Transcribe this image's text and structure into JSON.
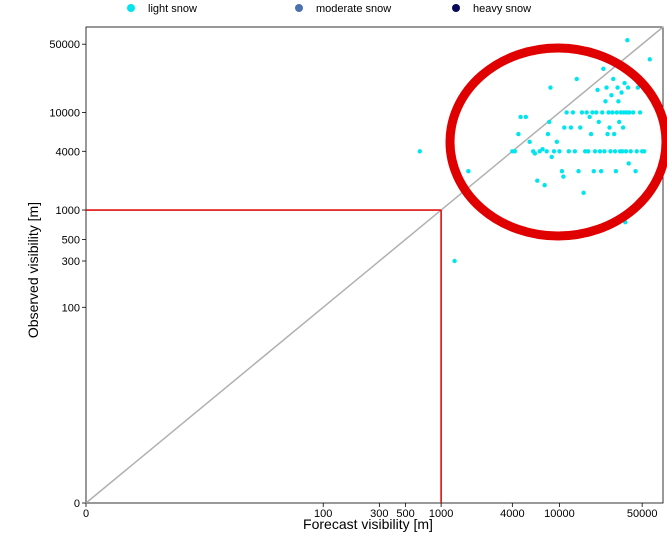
{
  "chart_data": {
    "type": "scatter",
    "title": "",
    "xlabel": "Forecast visibility [m]",
    "ylabel": "Observed visibility [m]",
    "x_scale": "log",
    "y_scale": "log",
    "xlim": [
      0,
      75000
    ],
    "ylim": [
      0,
      75000
    ],
    "x_ticks": [
      {
        "value": 0,
        "label": "0"
      },
      {
        "value": 100,
        "label": "100"
      },
      {
        "value": 300,
        "label": "300"
      },
      {
        "value": 500,
        "label": "500"
      },
      {
        "value": 1000,
        "label": "1000"
      },
      {
        "value": 4000,
        "label": "4000"
      },
      {
        "value": 10000,
        "label": "10000"
      },
      {
        "value": 50000,
        "label": "50000"
      }
    ],
    "y_ticks": [
      {
        "value": 0,
        "label": "0"
      },
      {
        "value": 100,
        "label": "100"
      },
      {
        "value": 300,
        "label": "300"
      },
      {
        "value": 500,
        "label": "500"
      },
      {
        "value": 1000,
        "label": "1000"
      },
      {
        "value": 4000,
        "label": "4000"
      },
      {
        "value": 10000,
        "label": "10000"
      },
      {
        "value": 50000,
        "label": "50000"
      }
    ],
    "legend": {
      "placement": "top",
      "entries": [
        {
          "label": "light snow",
          "color": "#00e5ee"
        },
        {
          "label": "moderate snow",
          "color": "#4a72b0"
        },
        {
          "label": "heavy snow",
          "color": "#0a0a5a"
        }
      ]
    },
    "reference_line": {
      "label": "",
      "color": "#b0b0b0",
      "from": [
        0,
        0
      ],
      "to": [
        75000,
        75000
      ]
    },
    "threshold_lines": {
      "color": "#e01010",
      "x": 1000,
      "y": 1000
    },
    "highlight_circle": {
      "color": "#e00000",
      "center": [
        15000,
        8000
      ]
    },
    "series": [
      {
        "name": "light snow",
        "color": "#00e5ee",
        "points": [
          [
            660,
            4000
          ],
          [
            1300,
            300
          ],
          [
            1700,
            2500
          ],
          [
            4000,
            4000
          ],
          [
            4200,
            4000
          ],
          [
            4500,
            6000
          ],
          [
            4700,
            9000
          ],
          [
            5200,
            9000
          ],
          [
            5600,
            5000
          ],
          [
            6000,
            4000
          ],
          [
            6200,
            3800
          ],
          [
            6500,
            2000
          ],
          [
            6800,
            4000
          ],
          [
            7200,
            4200
          ],
          [
            7500,
            1800
          ],
          [
            7800,
            4000
          ],
          [
            8000,
            6000
          ],
          [
            8200,
            8000
          ],
          [
            8400,
            18000
          ],
          [
            8600,
            3500
          ],
          [
            9000,
            4000
          ],
          [
            9500,
            5000
          ],
          [
            10000,
            4000
          ],
          [
            10500,
            2500
          ],
          [
            10800,
            2200
          ],
          [
            11000,
            7000
          ],
          [
            11500,
            10000
          ],
          [
            12000,
            4000
          ],
          [
            12500,
            7000
          ],
          [
            13000,
            10000
          ],
          [
            13500,
            4000
          ],
          [
            14000,
            22000
          ],
          [
            14500,
            2500
          ],
          [
            15000,
            7000
          ],
          [
            15500,
            10000
          ],
          [
            16000,
            1500
          ],
          [
            16500,
            4000
          ],
          [
            17000,
            10000
          ],
          [
            17500,
            4000
          ],
          [
            18000,
            9000
          ],
          [
            18500,
            6000
          ],
          [
            19000,
            10000
          ],
          [
            19500,
            2500
          ],
          [
            20000,
            4000
          ],
          [
            20500,
            10000
          ],
          [
            21000,
            17000
          ],
          [
            21500,
            8000
          ],
          [
            22000,
            4000
          ],
          [
            22500,
            2500
          ],
          [
            23000,
            10000
          ],
          [
            23500,
            28000
          ],
          [
            24000,
            4000
          ],
          [
            24500,
            13000
          ],
          [
            25000,
            18000
          ],
          [
            25500,
            6000
          ],
          [
            26000,
            10000
          ],
          [
            26500,
            7000
          ],
          [
            27000,
            4000
          ],
          [
            27500,
            15000
          ],
          [
            28000,
            10000
          ],
          [
            28500,
            22000
          ],
          [
            29000,
            6000
          ],
          [
            29500,
            4000
          ],
          [
            30000,
            2500
          ],
          [
            30500,
            10000
          ],
          [
            31000,
            18000
          ],
          [
            31500,
            13000
          ],
          [
            32000,
            8000
          ],
          [
            32500,
            4000
          ],
          [
            33000,
            10000
          ],
          [
            33500,
            16000
          ],
          [
            34000,
            4000
          ],
          [
            34500,
            7000
          ],
          [
            35000,
            10000
          ],
          [
            35500,
            20000
          ],
          [
            36000,
            750
          ],
          [
            36500,
            4000
          ],
          [
            37000,
            10000
          ],
          [
            37500,
            55000
          ],
          [
            38000,
            18000
          ],
          [
            38500,
            3000
          ],
          [
            39000,
            10000
          ],
          [
            40000,
            4000
          ],
          [
            42000,
            10000
          ],
          [
            44000,
            2500
          ],
          [
            45000,
            4000
          ],
          [
            46000,
            18000
          ],
          [
            48000,
            10000
          ],
          [
            50000,
            4000
          ],
          [
            52000,
            4000
          ],
          [
            58000,
            35000
          ]
        ]
      },
      {
        "name": "moderate snow",
        "color": "#4a72b0",
        "points": []
      },
      {
        "name": "heavy snow",
        "color": "#0a0a5a",
        "points": []
      }
    ]
  }
}
